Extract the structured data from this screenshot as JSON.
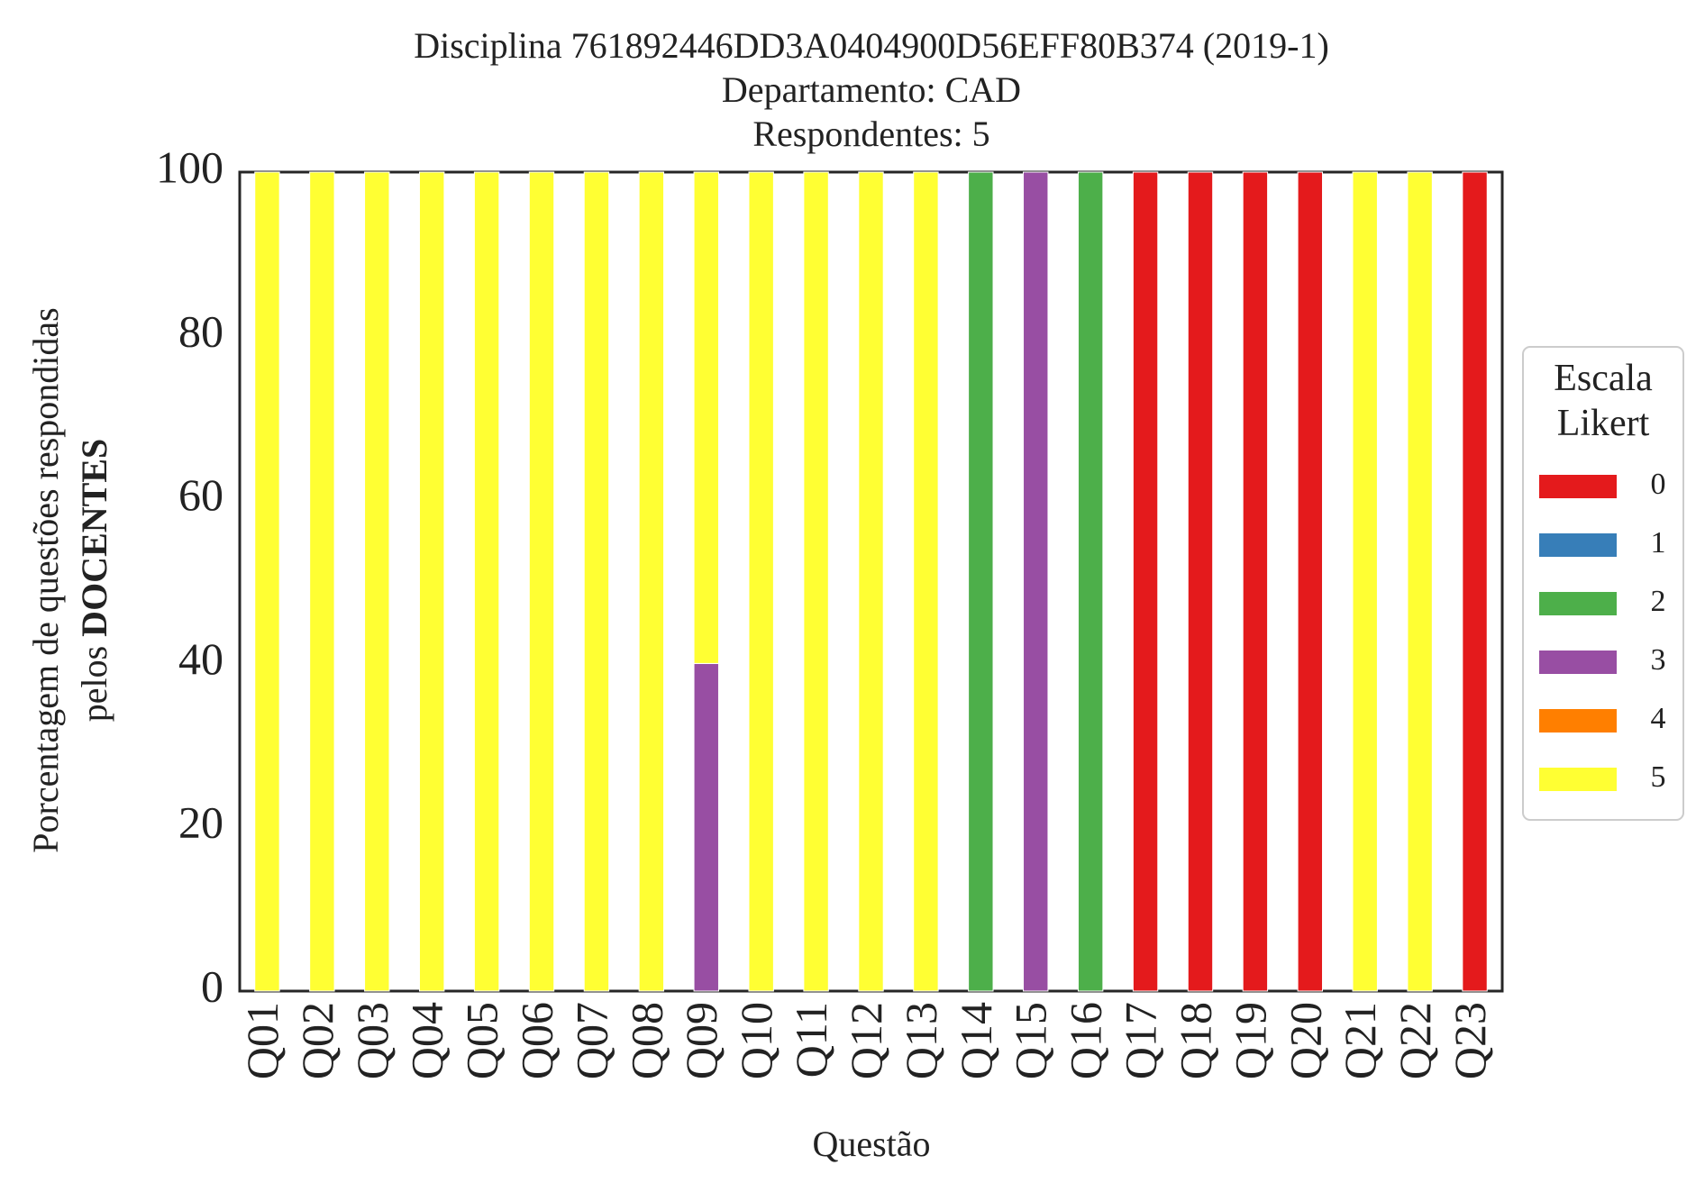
{
  "chart_data": {
    "type": "bar",
    "stacked": true,
    "title": [
      "Disciplina 761892446DD3A0404900D56EFF80B374 (2019-1)",
      "Departamento: CAD",
      "Respondentes: 5"
    ],
    "xlabel": "Questão",
    "ylabel": [
      "Porcentagem de questões respondidas",
      "pelos ",
      "DOCENTES"
    ],
    "ylim": [
      0,
      100
    ],
    "yticks": [
      "0",
      "20",
      "40",
      "60",
      "80",
      "100"
    ],
    "categories": [
      "Q01",
      "Q02",
      "Q03",
      "Q04",
      "Q05",
      "Q06",
      "Q07",
      "Q08",
      "Q09",
      "Q10",
      "Q11",
      "Q12",
      "Q13",
      "Q14",
      "Q15",
      "Q16",
      "Q17",
      "Q18",
      "Q19",
      "Q20",
      "Q21",
      "Q22",
      "Q23"
    ],
    "legend_title": [
      "Escala",
      "Likert"
    ],
    "legend_position": "right",
    "grid": false,
    "series": [
      {
        "name": "0",
        "color": "#e41a1c",
        "values": [
          0,
          0,
          0,
          0,
          0,
          0,
          0,
          0,
          0,
          0,
          0,
          0,
          0,
          0,
          0,
          0,
          100,
          100,
          100,
          100,
          0,
          0,
          100
        ]
      },
      {
        "name": "1",
        "color": "#377eb8",
        "values": [
          0,
          0,
          0,
          0,
          0,
          0,
          0,
          0,
          0,
          0,
          0,
          0,
          0,
          0,
          0,
          0,
          0,
          0,
          0,
          0,
          0,
          0,
          0
        ]
      },
      {
        "name": "2",
        "color": "#4daf4a",
        "values": [
          0,
          0,
          0,
          0,
          0,
          0,
          0,
          0,
          0,
          0,
          0,
          0,
          0,
          100,
          0,
          100,
          0,
          0,
          0,
          0,
          0,
          0,
          0
        ]
      },
      {
        "name": "3",
        "color": "#984ea3",
        "values": [
          0,
          0,
          0,
          0,
          0,
          0,
          0,
          0,
          40,
          0,
          0,
          0,
          0,
          0,
          100,
          0,
          0,
          0,
          0,
          0,
          0,
          0,
          0
        ]
      },
      {
        "name": "4",
        "color": "#ff7f00",
        "values": [
          0,
          0,
          0,
          0,
          0,
          0,
          0,
          0,
          0,
          0,
          0,
          0,
          0,
          0,
          0,
          0,
          0,
          0,
          0,
          0,
          0,
          0,
          0
        ]
      },
      {
        "name": "5",
        "color": "#ffff33",
        "values": [
          100,
          100,
          100,
          100,
          100,
          100,
          100,
          100,
          60,
          100,
          100,
          100,
          100,
          0,
          0,
          0,
          0,
          0,
          0,
          0,
          100,
          100,
          0
        ]
      }
    ]
  }
}
